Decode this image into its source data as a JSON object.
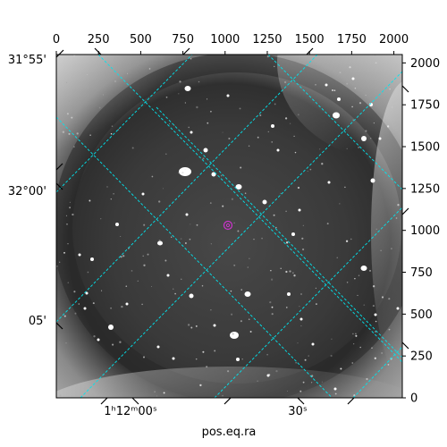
{
  "axes": {
    "pixel_x": {
      "range": [
        0,
        2050
      ],
      "ticks": [
        {
          "value": 0,
          "label": "0"
        },
        {
          "value": 250,
          "label": "250"
        },
        {
          "value": 500,
          "label": "500"
        },
        {
          "value": 750,
          "label": "750"
        },
        {
          "value": 1000,
          "label": "1000"
        },
        {
          "value": 1250,
          "label": "1250"
        },
        {
          "value": 1500,
          "label": "1500"
        },
        {
          "value": 1750,
          "label": "1750"
        },
        {
          "value": 2000,
          "label": "2000"
        }
      ]
    },
    "pixel_y": {
      "range": [
        0,
        2050
      ],
      "ticks": [
        {
          "value": 0,
          "label": "0"
        },
        {
          "value": 250,
          "label": "250"
        },
        {
          "value": 500,
          "label": "500"
        },
        {
          "value": 750,
          "label": "750"
        },
        {
          "value": 1000,
          "label": "1000"
        },
        {
          "value": 1250,
          "label": "1250"
        },
        {
          "value": 1500,
          "label": "1500"
        },
        {
          "value": 1750,
          "label": "1750"
        },
        {
          "value": 2000,
          "label": "2000"
        }
      ]
    },
    "dec_labels": [
      {
        "value": "31:55",
        "label": "31°55'"
      },
      {
        "value": "32:00",
        "label": "32°00'"
      },
      {
        "value": "32:05",
        "label": "05'"
      }
    ],
    "ra_labels": [
      {
        "value": "1:12:00",
        "label_main": "1ʰ12ᵐ00ˢ"
      },
      {
        "value": "1:12:30",
        "label_main": "30ˢ"
      }
    ],
    "xlabel": "pos.eq.ra"
  },
  "image": {
    "background_color": "#5a5a5a",
    "grid_color": "#00e5ee",
    "marker_color": "#cc33cc"
  }
}
